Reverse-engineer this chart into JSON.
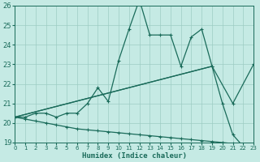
{
  "xlabel": "Humidex (Indice chaleur)",
  "bg_color": "#c5eae4",
  "grid_color": "#9dccc4",
  "line_color": "#1a6b5a",
  "xlim": [
    0,
    23
  ],
  "ylim": [
    19,
    26
  ],
  "xticks": [
    0,
    1,
    2,
    3,
    4,
    5,
    6,
    7,
    8,
    9,
    10,
    11,
    12,
    13,
    14,
    15,
    16,
    17,
    18,
    19,
    20,
    21,
    22,
    23
  ],
  "yticks": [
    19,
    20,
    21,
    22,
    23,
    24,
    25,
    26
  ],
  "line1_x": [
    0,
    1,
    2,
    3,
    4,
    5,
    6,
    7,
    8,
    9,
    10,
    11,
    12,
    13,
    14,
    15,
    16,
    17,
    18,
    19,
    20,
    21,
    22,
    23
  ],
  "line1_y": [
    20.3,
    20.3,
    20.5,
    20.5,
    20.3,
    20.5,
    20.5,
    21.0,
    21.8,
    21.1,
    23.2,
    24.8,
    26.3,
    24.5,
    24.5,
    24.5,
    22.9,
    24.4,
    24.8,
    22.9,
    21.0,
    19.4,
    18.8,
    18.8
  ],
  "line2_x": [
    0,
    19,
    21,
    23
  ],
  "line2_y": [
    20.3,
    22.9,
    21.0,
    23.0
  ],
  "line3_x": [
    0,
    1,
    2,
    3,
    4,
    5,
    6,
    7,
    8,
    9,
    10,
    11,
    12,
    13,
    14,
    15,
    16,
    17,
    18,
    19,
    20,
    21,
    22,
    23
  ],
  "line3_y": [
    20.3,
    20.2,
    20.1,
    20.0,
    19.9,
    19.8,
    19.7,
    19.65,
    19.6,
    19.55,
    19.5,
    19.45,
    19.4,
    19.35,
    19.3,
    19.25,
    19.2,
    19.15,
    19.1,
    19.05,
    19.0,
    18.95,
    18.9,
    18.8
  ],
  "line4_x": [
    0,
    19
  ],
  "line4_y": [
    20.3,
    22.9
  ]
}
